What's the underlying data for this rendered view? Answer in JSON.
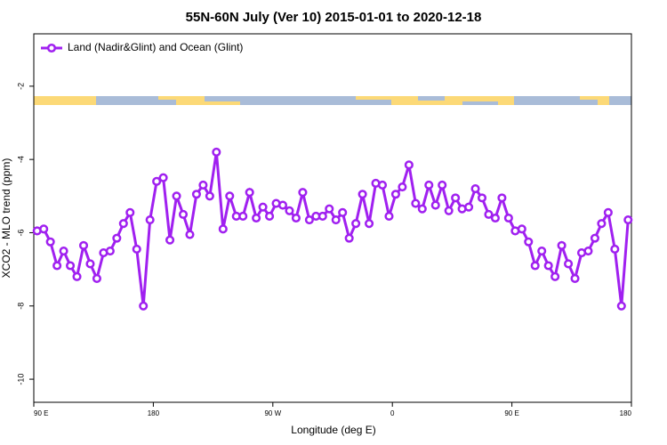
{
  "chart_data": {
    "type": "line",
    "title": "55N-60N July (Ver 10)   2015-01-01 to 2020-12-18",
    "xlabel": "Longitude (deg E)",
    "ylabel": "XCO2 - MLO trend (ppm)",
    "xlim": [
      90,
      540
    ],
    "xticks": [
      {
        "value": 90,
        "label": "90 E"
      },
      180,
      {
        "value": 270,
        "label": "90 W"
      },
      {
        "value": 360,
        "label": "0"
      },
      {
        "value": 450,
        "label": "90 E"
      },
      {
        "value": 540,
        "label": "180"
      }
    ],
    "ylim": [
      -10.63,
      -0.57
    ],
    "yticks": [
      -10,
      -8,
      -6,
      -4,
      -2
    ],
    "legend": "top-left",
    "x": [
      92.5,
      97.5,
      102.5,
      107.5,
      112.5,
      117.5,
      122.5,
      127.5,
      132.5,
      137.5,
      142.5,
      147.5,
      152.5,
      157.5,
      162.5,
      167.5,
      172.5,
      177.5,
      182.5,
      187.5,
      192.5,
      197.5,
      202.5,
      207.5,
      212.5,
      217.5,
      222.5,
      227.5,
      232.5,
      237.5,
      242.5,
      247.5,
      252.5,
      257.5,
      262.5,
      267.5,
      272.5,
      277.5,
      282.5,
      287.5,
      292.5,
      297.5,
      302.5,
      307.5,
      312.5,
      317.5,
      322.5,
      327.5,
      332.5,
      337.5,
      342.5,
      347.5,
      352.5,
      357.5,
      362.5,
      367.5,
      372.5,
      377.5,
      382.5,
      387.5,
      392.5,
      397.5,
      402.5,
      407.5,
      412.5,
      417.5,
      422.5,
      427.5,
      432.5,
      437.5,
      442.5,
      447.5,
      452.5,
      457.5,
      462.5,
      467.5,
      472.5,
      477.5,
      482.5,
      487.5,
      492.5,
      497.5,
      502.5,
      507.5,
      512.5,
      517.5,
      522.5,
      527.5,
      532.5,
      537.5
    ],
    "series": [
      {
        "name": "Land (Nadir&Glint) and Ocean (Glint)",
        "color": "#a020f0",
        "values": [
          -5.95,
          -5.9,
          -6.25,
          -6.9,
          -6.5,
          -6.9,
          -7.2,
          -6.35,
          -6.85,
          -7.25,
          -6.55,
          -6.5,
          -6.15,
          -5.75,
          -5.45,
          -6.45,
          -8.0,
          -5.65,
          -4.6,
          -4.5,
          -6.2,
          -5.0,
          -5.5,
          -6.05,
          -4.95,
          -4.7,
          -5.0,
          -3.8,
          -5.9,
          -5.0,
          -5.55,
          -5.55,
          -4.9,
          -5.6,
          -5.3,
          -5.55,
          -5.2,
          -5.25,
          -5.4,
          -5.6,
          -4.9,
          -5.65,
          -5.55,
          -5.55,
          -5.35,
          -5.65,
          -5.45,
          -6.15,
          -5.75,
          -4.95,
          -5.75,
          -4.65,
          -4.7,
          -5.55,
          -4.95,
          -4.75,
          -4.15,
          -5.2,
          -5.35,
          -4.7,
          -5.25,
          -4.7,
          -5.4,
          -5.05,
          -5.35,
          -5.3,
          -4.8,
          -5.05,
          -5.5,
          -5.6,
          -5.05,
          -5.6,
          -5.95,
          -5.9,
          -6.25,
          -6.9,
          -6.5,
          -6.9,
          -7.2,
          -6.35,
          -6.85,
          -7.25,
          -6.55,
          -6.5,
          -6.15,
          -5.75,
          -5.45,
          -6.45,
          -8.0,
          -5.65
        ]
      }
    ]
  }
}
